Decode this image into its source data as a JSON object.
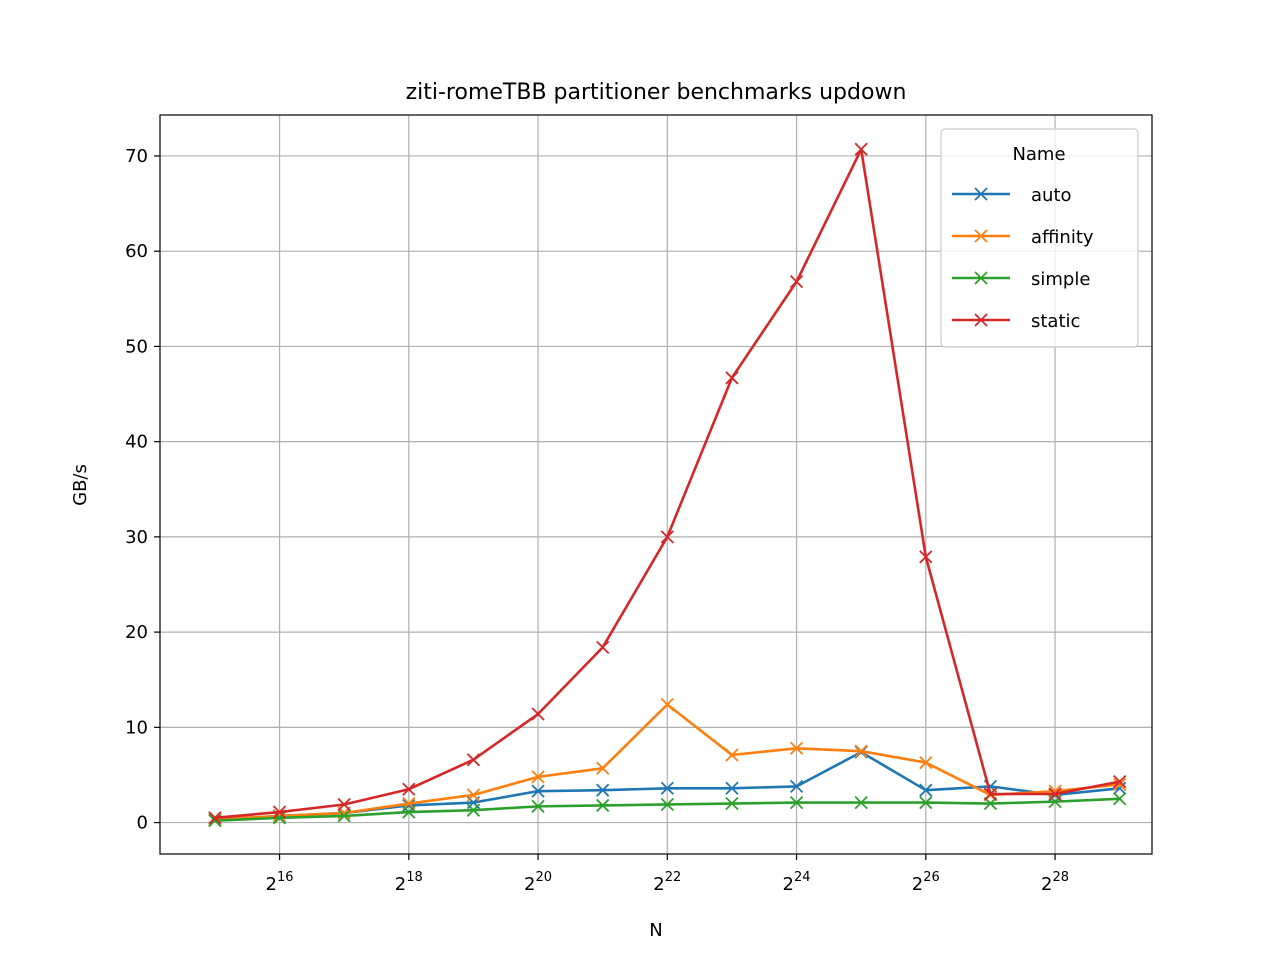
{
  "chart_data": {
    "type": "line",
    "title": "ziti-romeTBB partitioner benchmarks updown",
    "xlabel": "N",
    "ylabel": "GB/s",
    "x_scale": "log2",
    "x_exponents": [
      15,
      16,
      17,
      18,
      19,
      20,
      21,
      22,
      23,
      24,
      25,
      26,
      27,
      28,
      29
    ],
    "xlim_exponent": [
      14.15,
      29.5
    ],
    "ylim": [
      -3.3,
      74.3
    ],
    "x_ticks": [
      {
        "exp": 16,
        "base": "2",
        "power": "16"
      },
      {
        "exp": 18,
        "base": "2",
        "power": "18"
      },
      {
        "exp": 20,
        "base": "2",
        "power": "20"
      },
      {
        "exp": 22,
        "base": "2",
        "power": "22"
      },
      {
        "exp": 24,
        "base": "2",
        "power": "24"
      },
      {
        "exp": 26,
        "base": "2",
        "power": "26"
      },
      {
        "exp": 28,
        "base": "2",
        "power": "28"
      }
    ],
    "y_ticks": [
      {
        "value": 0,
        "label": "0"
      },
      {
        "value": 10,
        "label": "10"
      },
      {
        "value": 20,
        "label": "20"
      },
      {
        "value": 30,
        "label": "30"
      },
      {
        "value": 40,
        "label": "40"
      },
      {
        "value": 50,
        "label": "50"
      },
      {
        "value": 60,
        "label": "60"
      },
      {
        "value": 70,
        "label": "70"
      }
    ],
    "grid": true,
    "legend": {
      "title": "Name",
      "position": "top-right"
    },
    "series": [
      {
        "name": "auto",
        "color": "#1f77b4",
        "values": [
          0.3,
          0.7,
          1.0,
          1.8,
          2.1,
          3.3,
          3.4,
          3.6,
          3.6,
          3.8,
          7.4,
          3.4,
          3.8,
          2.9,
          3.6
        ]
      },
      {
        "name": "affinity",
        "color": "#ff7f0e",
        "values": [
          0.3,
          0.7,
          1.0,
          2.0,
          2.9,
          4.8,
          5.7,
          12.4,
          7.1,
          7.8,
          7.5,
          6.3,
          2.9,
          3.3,
          4.0
        ]
      },
      {
        "name": "simple",
        "color": "#2ca02c",
        "values": [
          0.2,
          0.5,
          0.7,
          1.1,
          1.3,
          1.7,
          1.8,
          1.9,
          2.0,
          2.1,
          2.1,
          2.1,
          2.0,
          2.2,
          2.5
        ]
      },
      {
        "name": "static",
        "color": "#d62728",
        "values": [
          0.5,
          1.1,
          1.9,
          3.5,
          6.6,
          11.4,
          18.4,
          30.0,
          46.7,
          56.8,
          70.7,
          27.9,
          3.0,
          3.0,
          4.3
        ]
      }
    ]
  }
}
